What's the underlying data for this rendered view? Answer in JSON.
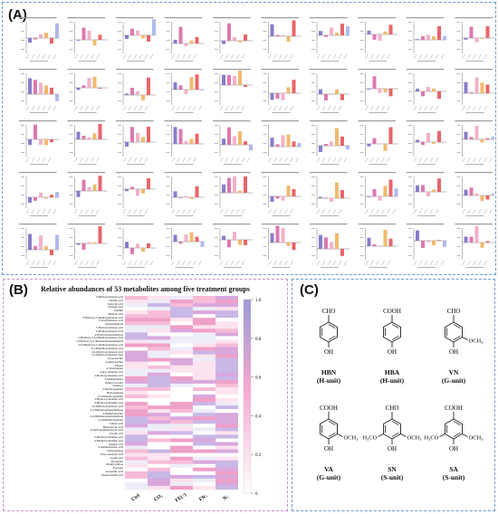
{
  "panel_a": {
    "label": "(A)",
    "mini_chart_count": 50,
    "bar_colors": [
      "#7b6fc4",
      "#d86aa8",
      "#f1a8c3",
      "#f0b35e",
      "#e6545a",
      "#a9b2ea"
    ]
  },
  "panel_b": {
    "label": "(B)",
    "chart_data": {
      "type": "heatmap",
      "title": "Relative abundances of 53 metabolites among five treatment groups",
      "columns": [
        "Ctrl",
        "CO₂",
        "FE(↑)",
        "FN↓",
        "N↓"
      ],
      "rows": [
        "4-Hydroxybenzoic acid",
        "Vanillic acid",
        "Salicylic acid",
        "Syringic acid",
        "Vanillin",
        "Benzoic acid",
        "3-Hydroxy-4-methoxybenzoic acid",
        "3-Acetylbenzoic acid",
        "Syringaldehyde",
        "3-Hydroxybenzoic acid",
        "2-Methoxybenzoic acid",
        "4-Hydroxybenzaldehyde",
        "2-Hydroxy-3,4-dimethoxybenzoic acid",
        "2-Hydroxy-3,4-dimethoxybenzaldehyde",
        "3,4-Dihydroxy-5-methoxybenzoic acid",
        "2,3-Dimethoxybenzoic acid",
        "2,6-Dihydroxybenzoic acid",
        "2,5-Dihydroxybenzoic acid",
        "Pyrocatechol",
        "4-Allylcatechol",
        "Phenol",
        "4-Vinylphenol",
        "trans-Cinnamic acid",
        "2-Hydroxycinnamic acid",
        "3-Methylphenol",
        "Vanillyl alcohol",
        "Guaiacol",
        "2-Methoxyphenol",
        "Hydroquinone",
        "3,5-Dimethoxyphenol",
        "3-Hydroxycinnamic acid",
        "4-Hydroxycinnamic acid",
        "2,4-Dihydroxybenzoic acid",
        "3,4-Dihydroxybenzaldehyde",
        "4-Methylcatechol",
        "2,4-Dimethoxybenzaldehyde",
        "2,6-Dimethoxyphenol",
        "Caffeic acid",
        "Phenylacetic acid",
        "4-Hydroxyphenylacetic acid",
        "Ferulic acid",
        "3-Methoxycinnamic acid",
        "4-Methoxycinnamic acid",
        "Sinapic acid",
        "4-Aminobenzoic acid",
        "Syringylidene",
        "Protocatechuic acid",
        "Gallic acid",
        "Pyrogallol",
        "Methyl gallate",
        "Pyruvate",
        "Isovanillic acid",
        "Homovanillic acid"
      ],
      "colorbar": {
        "min": 0,
        "max": 1,
        "ticks": [
          "0",
          "0.2",
          "0.4",
          "0.6",
          "0.8",
          "1.0"
        ],
        "low_color": "#ffffff",
        "mid_color": "#f3a8cf",
        "high_color": "#9b9ad8"
      }
    }
  },
  "panel_c": {
    "label": "(C)",
    "structures": [
      {
        "name": "HBN",
        "unit": "(H-unit)",
        "top_group": "CHO",
        "left_sub": "",
        "right_sub": ""
      },
      {
        "name": "HBA",
        "unit": "(H-unit)",
        "top_group": "COOH",
        "left_sub": "",
        "right_sub": ""
      },
      {
        "name": "VN",
        "unit": "(G-unit)",
        "top_group": "CHO",
        "left_sub": "",
        "right_sub": "OCH₃"
      },
      {
        "name": "VA",
        "unit": "(G-unit)",
        "top_group": "COOH",
        "left_sub": "",
        "right_sub": "OCH₃"
      },
      {
        "name": "SN",
        "unit": "(S-unit)",
        "top_group": "CHO",
        "left_sub": "H₃CO",
        "right_sub": "OCH₃"
      },
      {
        "name": "SA",
        "unit": "(S-unit)",
        "top_group": "COOH",
        "left_sub": "H₃CO",
        "right_sub": "OCH₃"
      }
    ],
    "oh_label": "OH"
  }
}
